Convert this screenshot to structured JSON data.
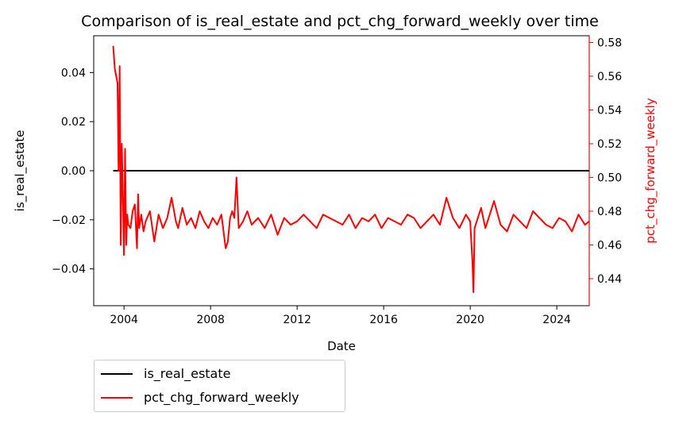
{
  "chart_data": {
    "type": "line",
    "title": "Comparison of is_real_estate and pct_chg_forward_weekly over time",
    "xlabel": "Date",
    "ylabel_left": "is_real_estate",
    "ylabel_right": "pct_chg_forward_weekly",
    "xlim": [
      2002.6,
      2025.5
    ],
    "ylim_left": [
      -0.055,
      0.055
    ],
    "ylim_right": [
      0.424,
      0.584
    ],
    "x_ticks": [
      2004,
      2008,
      2012,
      2016,
      2020,
      2024
    ],
    "y_left_ticks": [
      0.04,
      0.02,
      0.0,
      -0.02,
      -0.04
    ],
    "y_left_tick_labels": [
      "0.04",
      "0.02",
      "0.00",
      "−0.02",
      "−0.04"
    ],
    "y_right_ticks": [
      0.58,
      0.56,
      0.54,
      0.52,
      0.5,
      0.48,
      0.46,
      0.44
    ],
    "y_right_tick_labels": [
      "0.58",
      "0.56",
      "0.54",
      "0.52",
      "0.50",
      "0.48",
      "0.46",
      "0.44"
    ],
    "grid": false,
    "legend_position": "below-left",
    "series": [
      {
        "name": "is_real_estate",
        "axis": "left",
        "color": "#000000",
        "x": [
          2003.5,
          2025.5
        ],
        "values": [
          0.0,
          0.0
        ]
      },
      {
        "name": "pct_chg_forward_weekly",
        "axis": "right",
        "color": "#ff0000",
        "x": [
          2003.5,
          2003.58,
          2003.7,
          2003.75,
          2003.8,
          2003.85,
          2003.9,
          2003.95,
          2004.0,
          2004.05,
          2004.1,
          2004.15,
          2004.2,
          2004.3,
          2004.4,
          2004.5,
          2004.6,
          2004.65,
          2004.7,
          2004.8,
          2004.9,
          2005.0,
          2005.2,
          2005.4,
          2005.6,
          2005.8,
          2006.0,
          2006.2,
          2006.4,
          2006.5,
          2006.7,
          2006.9,
          2007.1,
          2007.3,
          2007.5,
          2007.7,
          2007.9,
          2008.1,
          2008.3,
          2008.5,
          2008.7,
          2008.8,
          2008.9,
          2009.0,
          2009.1,
          2009.2,
          2009.3,
          2009.5,
          2009.7,
          2009.9,
          2010.2,
          2010.5,
          2010.8,
          2011.1,
          2011.4,
          2011.7,
          2012.0,
          2012.3,
          2012.6,
          2012.9,
          2013.2,
          2013.5,
          2013.8,
          2014.1,
          2014.4,
          2014.7,
          2015.0,
          2015.3,
          2015.6,
          2015.9,
          2016.2,
          2016.5,
          2016.8,
          2017.1,
          2017.4,
          2017.7,
          2018.0,
          2018.3,
          2018.6,
          2018.9,
          2019.2,
          2019.5,
          2019.8,
          2020.0,
          2020.1,
          2020.15,
          2020.2,
          2020.3,
          2020.5,
          2020.7,
          2020.9,
          2021.1,
          2021.4,
          2021.7,
          2022.0,
          2022.3,
          2022.6,
          2022.9,
          2023.2,
          2023.5,
          2023.8,
          2024.1,
          2024.4,
          2024.7,
          2025.0,
          2025.3,
          2025.5
        ],
        "values": [
          0.578,
          0.564,
          0.556,
          0.504,
          0.566,
          0.46,
          0.52,
          0.488,
          0.454,
          0.517,
          0.46,
          0.478,
          0.472,
          0.47,
          0.48,
          0.484,
          0.458,
          0.49,
          0.47,
          0.478,
          0.468,
          0.474,
          0.48,
          0.462,
          0.478,
          0.47,
          0.476,
          0.488,
          0.474,
          0.47,
          0.482,
          0.472,
          0.476,
          0.47,
          0.48,
          0.474,
          0.47,
          0.476,
          0.472,
          0.478,
          0.458,
          0.462,
          0.476,
          0.48,
          0.476,
          0.5,
          0.47,
          0.474,
          0.48,
          0.472,
          0.476,
          0.47,
          0.478,
          0.466,
          0.476,
          0.472,
          0.474,
          0.478,
          0.474,
          0.47,
          0.478,
          0.476,
          0.474,
          0.472,
          0.478,
          0.47,
          0.476,
          0.474,
          0.478,
          0.47,
          0.476,
          0.474,
          0.472,
          0.478,
          0.476,
          0.47,
          0.474,
          0.478,
          0.472,
          0.488,
          0.476,
          0.47,
          0.478,
          0.474,
          0.45,
          0.432,
          0.47,
          0.474,
          0.482,
          0.47,
          0.478,
          0.486,
          0.472,
          0.468,
          0.478,
          0.474,
          0.47,
          0.48,
          0.476,
          0.472,
          0.47,
          0.476,
          0.474,
          0.468,
          0.478,
          0.472,
          0.474
        ]
      }
    ]
  }
}
